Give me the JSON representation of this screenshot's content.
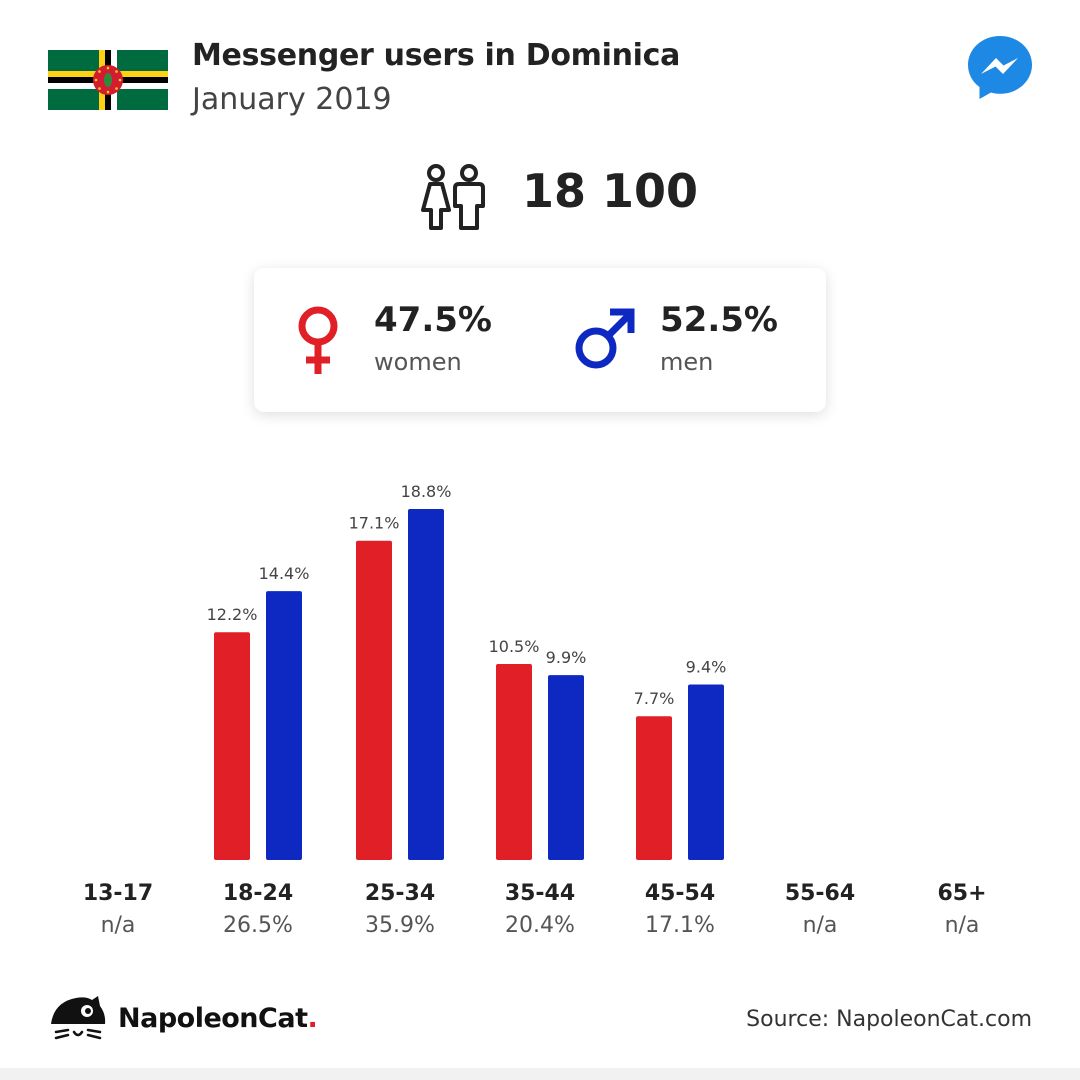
{
  "header": {
    "title": "Messenger users in Dominica",
    "subtitle": "January 2019"
  },
  "icons": {
    "flag": "dominica-flag-icon",
    "app": "messenger-icon",
    "users": "users-icon",
    "female": "female-symbol-icon",
    "male": "male-symbol-icon",
    "brand": "napoleoncat-logo-icon"
  },
  "total_users": "18 100",
  "gender": {
    "women": {
      "percent": "47.5%",
      "label": "women"
    },
    "men": {
      "percent": "52.5%",
      "label": "men"
    }
  },
  "colors": {
    "women": "#e01f26",
    "men": "#0d29c2",
    "messenger": "#1e88e5",
    "brand_dot": "#e02028"
  },
  "chart_data": {
    "type": "bar",
    "categories": [
      "13-17",
      "18-24",
      "25-34",
      "35-44",
      "45-54",
      "55-64",
      "65+"
    ],
    "category_totals": [
      "n/a",
      "26.5%",
      "35.9%",
      "20.4%",
      "17.1%",
      "n/a",
      "n/a"
    ],
    "series": [
      {
        "key": "women",
        "values": [
          null,
          12.2,
          17.1,
          10.5,
          7.7,
          null,
          null
        ]
      },
      {
        "key": "men",
        "values": [
          null,
          14.4,
          18.8,
          9.9,
          9.4,
          null,
          null
        ]
      }
    ],
    "value_labels": {
      "women": [
        "",
        "12.2%",
        "17.1%",
        "10.5%",
        "7.7%",
        "",
        ""
      ],
      "men": [
        "",
        "14.4%",
        "18.8%",
        "9.9%",
        "9.4%",
        "",
        ""
      ]
    },
    "ylim": [
      0,
      18.8
    ],
    "grid": false,
    "title": "",
    "xlabel": "",
    "ylabel": ""
  },
  "footer": {
    "brand_name": "NapoleonCat",
    "brand_dot": ".",
    "source": "Source: NapoleonCat.com"
  }
}
